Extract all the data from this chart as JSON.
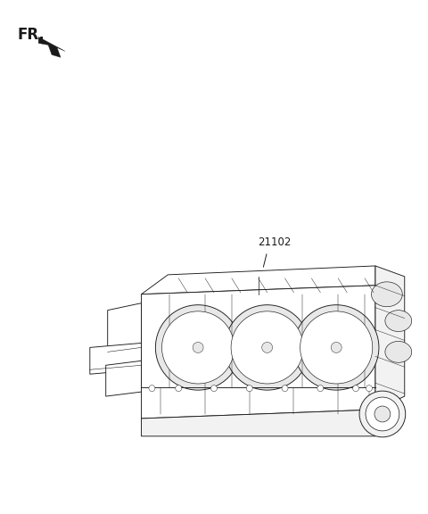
{
  "bg_color": "#ffffff",
  "line_color": "#1a1a1a",
  "fr_label": "FR.",
  "part_number": "21102",
  "lw": 0.65,
  "engine_color": "#ffffff",
  "shade_light": "#f2f2f2",
  "shade_mid": "#e8e8e8"
}
